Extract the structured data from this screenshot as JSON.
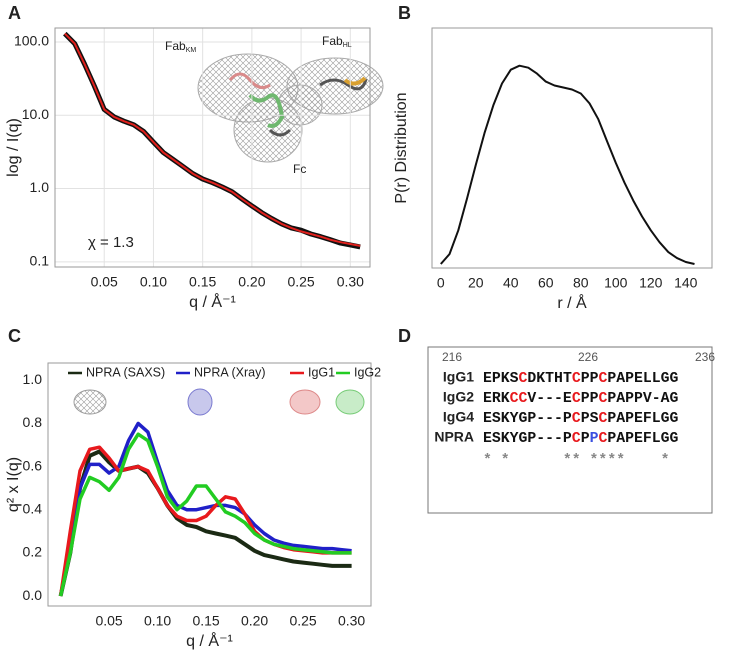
{
  "chart_data": [
    {
      "type": "line",
      "panel_label": "A",
      "log_y": true,
      "grid": true,
      "x_label": "q / Å⁻¹",
      "y_label": "log / I(q)",
      "xlim": [
        0,
        0.32
      ],
      "ylim": [
        0.085,
        155
      ],
      "xticks": [
        0.05,
        {
          "value": 0.1,
          "label": "0.10"
        },
        0.15,
        {
          "value": 0.2,
          "label": "0.20"
        },
        0.25,
        {
          "value": 0.3,
          "label": "0.30"
        }
      ],
      "yticks": [
        0.1,
        {
          "value": 1,
          "label": "1.0"
        },
        {
          "value": 10,
          "label": "10.0"
        },
        {
          "value": 100,
          "label": "100.0"
        }
      ],
      "x": [
        0.01,
        0.02,
        0.03,
        0.04,
        0.05,
        0.06,
        0.07,
        0.08,
        0.09,
        0.1,
        0.11,
        0.12,
        0.13,
        0.14,
        0.15,
        0.16,
        0.17,
        0.18,
        0.19,
        0.2,
        0.21,
        0.22,
        0.23,
        0.24,
        0.25,
        0.26,
        0.27,
        0.28,
        0.29,
        0.3,
        0.31
      ],
      "series": [
        {
          "color": "#111111",
          "line_width": 5,
          "values": [
            130,
            95,
            50,
            25,
            12,
            9.5,
            8.3,
            7.4,
            6,
            4.3,
            3.1,
            2.5,
            2,
            1.6,
            1.35,
            1.2,
            1.05,
            0.9,
            0.72,
            0.58,
            0.47,
            0.39,
            0.33,
            0.29,
            0.27,
            0.24,
            0.22,
            0.2,
            0.18,
            0.17,
            0.16
          ]
        },
        {
          "color": "#e0201c",
          "line_width": 2,
          "values": [
            130,
            95,
            50,
            25,
            12,
            9.5,
            8.3,
            7.4,
            6,
            4.3,
            3.1,
            2.5,
            2,
            1.6,
            1.35,
            1.2,
            1.05,
            0.9,
            0.72,
            0.58,
            0.47,
            0.39,
            0.33,
            0.29,
            0.26,
            0.24,
            0.22,
            0.2,
            0.185,
            0.175,
            0.165
          ]
        }
      ],
      "annotations": [
        {
          "text": "Fab",
          "sub": "KM"
        },
        {
          "text": "Fab",
          "sub": "HL"
        },
        {
          "text": "Fc"
        },
        {
          "text": "χ = 1.3"
        }
      ]
    },
    {
      "type": "line",
      "panel_label": "B",
      "x_label": "r / Å",
      "y_label": "P(r) Distribution",
      "xlim": [
        -5,
        155
      ],
      "ylim": [
        -0.02,
        1.19
      ],
      "xticks": [
        0,
        20,
        40,
        60,
        80,
        100,
        120,
        140
      ],
      "x": [
        0,
        5,
        10,
        15,
        20,
        25,
        30,
        35,
        40,
        45,
        50,
        55,
        60,
        65,
        70,
        75,
        80,
        85,
        90,
        95,
        100,
        105,
        110,
        115,
        120,
        125,
        130,
        135,
        140,
        145
      ],
      "series": [
        {
          "color": "#111111",
          "line_width": 2,
          "values": [
            0,
            0.05,
            0.17,
            0.33,
            0.5,
            0.66,
            0.8,
            0.91,
            0.98,
            1,
            0.99,
            0.96,
            0.92,
            0.9,
            0.89,
            0.88,
            0.86,
            0.81,
            0.73,
            0.62,
            0.51,
            0.41,
            0.32,
            0.24,
            0.17,
            0.11,
            0.06,
            0.03,
            0.01,
            0
          ]
        }
      ]
    },
    {
      "type": "line",
      "panel_label": "C",
      "x_label": "q / Å⁻¹",
      "y_label": "q² x I(q)",
      "xlim": [
        -0.013,
        0.32
      ],
      "ylim": [
        -0.046,
        1.08
      ],
      "xticks": [
        0.05,
        {
          "value": 0.1,
          "label": "0.10"
        },
        0.15,
        {
          "value": 0.2,
          "label": "0.20"
        },
        0.25,
        {
          "value": 0.3,
          "label": "0.30"
        }
      ],
      "yticks": [
        {
          "value": 0,
          "label": "0.0"
        },
        0.2,
        0.4,
        0.6,
        0.8,
        {
          "value": 1,
          "label": "1.0"
        }
      ],
      "x": [
        0,
        0.01,
        0.02,
        0.03,
        0.04,
        0.05,
        0.06,
        0.07,
        0.08,
        0.09,
        0.1,
        0.11,
        0.12,
        0.13,
        0.14,
        0.15,
        0.16,
        0.17,
        0.18,
        0.19,
        0.2,
        0.21,
        0.22,
        0.23,
        0.24,
        0.25,
        0.26,
        0.27,
        0.28,
        0.29,
        0.3
      ],
      "series": [
        {
          "name": "NPRA (SAXS)",
          "color": "#1b2a14",
          "line_width": 4,
          "values": [
            0,
            0.2,
            0.5,
            0.65,
            0.67,
            0.62,
            0.58,
            0.59,
            0.6,
            0.57,
            0.5,
            0.42,
            0.36,
            0.33,
            0.32,
            0.3,
            0.29,
            0.28,
            0.27,
            0.24,
            0.21,
            0.19,
            0.18,
            0.17,
            0.16,
            0.155,
            0.15,
            0.145,
            0.14,
            0.14,
            0.14
          ]
        },
        {
          "name": "NPRA (Xray)",
          "color": "#2020c8",
          "line_width": 3.5,
          "values": [
            0,
            0.25,
            0.5,
            0.61,
            0.61,
            0.57,
            0.6,
            0.72,
            0.8,
            0.76,
            0.62,
            0.49,
            0.42,
            0.4,
            0.4,
            0.41,
            0.42,
            0.42,
            0.41,
            0.38,
            0.33,
            0.29,
            0.26,
            0.245,
            0.235,
            0.23,
            0.225,
            0.22,
            0.22,
            0.215,
            0.21
          ]
        },
        {
          "name": "IgG1",
          "color": "#e8191d",
          "line_width": 3.5,
          "values": [
            0,
            0.3,
            0.58,
            0.68,
            0.69,
            0.64,
            0.58,
            0.59,
            0.6,
            0.58,
            0.5,
            0.42,
            0.37,
            0.35,
            0.35,
            0.37,
            0.42,
            0.46,
            0.45,
            0.38,
            0.3,
            0.26,
            0.24,
            0.225,
            0.215,
            0.21,
            0.205,
            0.2,
            0.2,
            0.2,
            0.2
          ]
        },
        {
          "name": "IgG2",
          "color": "#22cc22",
          "line_width": 3.5,
          "values": [
            0,
            0.2,
            0.45,
            0.55,
            0.53,
            0.49,
            0.55,
            0.68,
            0.75,
            0.72,
            0.6,
            0.46,
            0.4,
            0.44,
            0.51,
            0.51,
            0.45,
            0.39,
            0.37,
            0.34,
            0.29,
            0.26,
            0.24,
            0.23,
            0.22,
            0.215,
            0.21,
            0.205,
            0.2,
            0.2,
            0.2
          ]
        }
      ]
    }
  ],
  "alignment": {
    "panel_label": "D",
    "positions": [
      216,
      226,
      236
    ],
    "rows": [
      {
        "name": "IgG1",
        "segments": [
          {
            "text": "EPKS"
          },
          {
            "text": "C",
            "color": "#e8191d"
          },
          {
            "text": "DKTHT"
          },
          {
            "text": "C",
            "color": "#e8191d"
          },
          {
            "text": "PP"
          },
          {
            "text": "C",
            "color": "#e8191d"
          },
          {
            "text": "PAPELLGG"
          }
        ]
      },
      {
        "name": "IgG2",
        "segments": [
          {
            "text": "ERK"
          },
          {
            "text": "CC",
            "color": "#e8191d"
          },
          {
            "text": "V---E"
          },
          {
            "text": "C",
            "color": "#e8191d"
          },
          {
            "text": "PP"
          },
          {
            "text": "C",
            "color": "#e8191d"
          },
          {
            "text": "PAPPV-AG"
          }
        ]
      },
      {
        "name": "IgG4",
        "segments": [
          {
            "text": "ESKYGP---P"
          },
          {
            "text": "C",
            "color": "#e8191d"
          },
          {
            "text": "PS"
          },
          {
            "text": "C",
            "color": "#e8191d"
          },
          {
            "text": "PAPEFLGG"
          }
        ]
      },
      {
        "name": "NPRA",
        "segments": [
          {
            "text": "ESKYGP---P"
          },
          {
            "text": "C",
            "color": "#e8191d"
          },
          {
            "text": "P"
          },
          {
            "text": "P",
            "color": "#3a4fe0"
          },
          {
            "text": "C",
            "color": "#e8191d"
          },
          {
            "text": "PAPEFLGG"
          }
        ]
      }
    ],
    "conservation": "* *      ** ****    *"
  }
}
